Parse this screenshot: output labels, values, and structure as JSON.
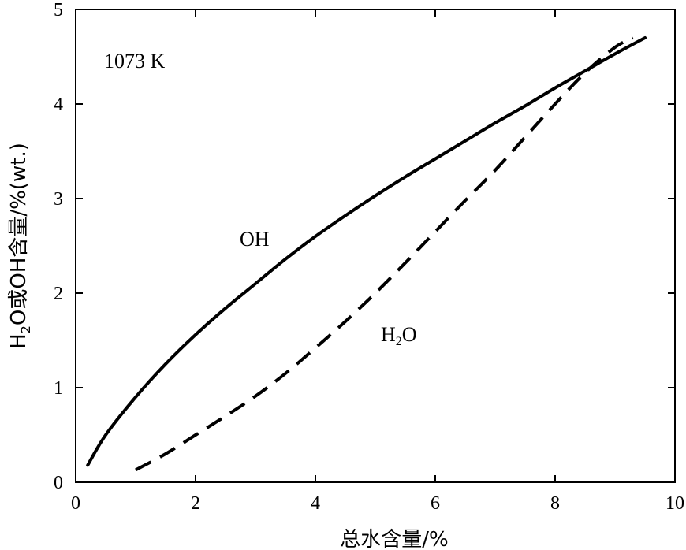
{
  "chart_data": {
    "type": "line",
    "title": "",
    "xlabel": "总水含量/%",
    "ylabel_parts": [
      "H",
      "2",
      "O或OH含量/%(wt.)"
    ],
    "xlim": [
      0,
      10
    ],
    "ylim": [
      0,
      5
    ],
    "xticks": [
      0,
      2,
      4,
      6,
      8,
      10
    ],
    "yticks": [
      0,
      1,
      2,
      3,
      4,
      5
    ],
    "grid": false,
    "annotation": "1073  K",
    "series": [
      {
        "name": "OH",
        "style": "solid",
        "color": "#000000",
        "x": [
          0.2,
          0.5,
          1.0,
          1.5,
          2.0,
          2.5,
          3.0,
          3.5,
          4.0,
          4.5,
          5.0,
          5.5,
          6.0,
          6.5,
          7.0,
          7.5,
          8.0,
          8.5,
          9.0,
          9.5
        ],
        "y": [
          0.18,
          0.5,
          0.9,
          1.25,
          1.56,
          1.84,
          2.1,
          2.36,
          2.6,
          2.82,
          3.03,
          3.23,
          3.42,
          3.61,
          3.8,
          3.98,
          4.17,
          4.35,
          4.53,
          4.7
        ]
      },
      {
        "name_parts": [
          "H",
          "2",
          "O"
        ],
        "style": "dashed",
        "color": "#000000",
        "x": [
          1.0,
          1.5,
          2.0,
          2.5,
          3.0,
          3.5,
          4.0,
          4.5,
          5.0,
          5.5,
          6.0,
          6.5,
          7.0,
          7.5,
          8.0,
          8.5,
          9.0,
          9.3
        ],
        "y": [
          0.13,
          0.3,
          0.5,
          0.7,
          0.91,
          1.15,
          1.42,
          1.7,
          2.0,
          2.32,
          2.65,
          2.98,
          3.3,
          3.65,
          4.0,
          4.33,
          4.6,
          4.7
        ]
      }
    ]
  }
}
